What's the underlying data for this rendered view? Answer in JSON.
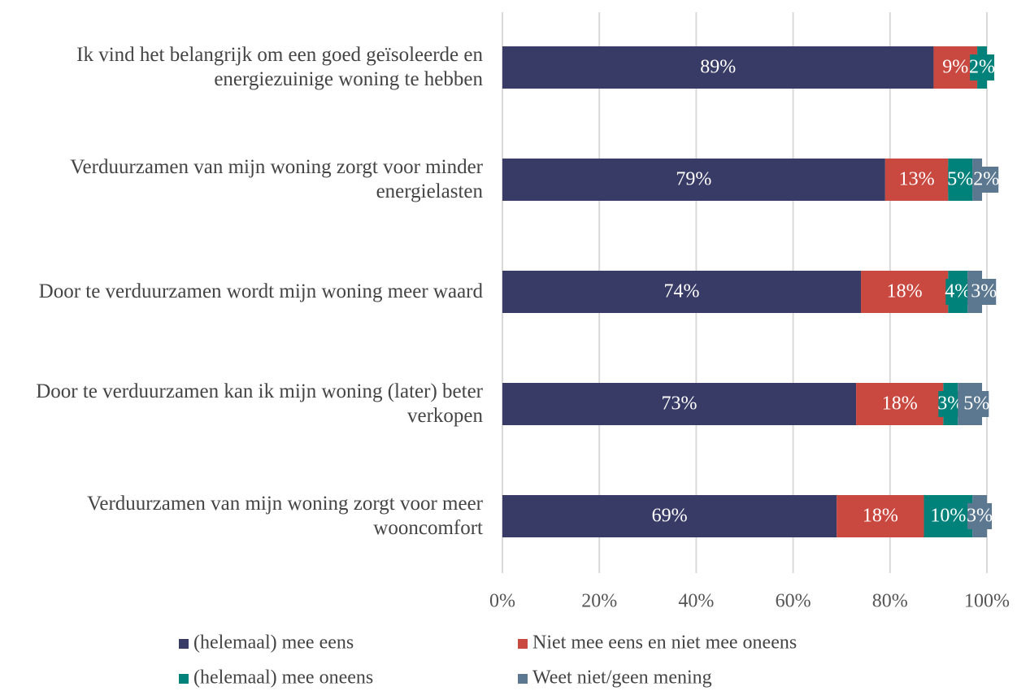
{
  "chart_data": {
    "type": "stacked-bar-horizontal",
    "categories": [
      "Ik vind het belangrijk om een goed geïsoleerde en energiezuinige woning te hebben",
      "Verduurzamen van mijn woning zorgt voor minder energielasten",
      "Door te verduurzamen wordt mijn woning meer waard",
      "Door te verduurzamen kan ik mijn woning (later) beter verkopen",
      "Verduurzamen van mijn woning zorgt voor meer wooncomfort"
    ],
    "series": [
      {
        "name": "(helemaal) mee eens",
        "color": "#383b66",
        "values": [
          89,
          79,
          74,
          73,
          69
        ],
        "value_labels": [
          "89%",
          "79%",
          "74%",
          "73%",
          "69%"
        ]
      },
      {
        "name": "Niet mee eens en niet mee oneens",
        "color": "#c9483f",
        "values": [
          9,
          13,
          18,
          18,
          18
        ],
        "value_labels": [
          "9%",
          "13%",
          "18%",
          "18%",
          "18%"
        ]
      },
      {
        "name": "(helemaal) mee oneens",
        "color": "#00827a",
        "values": [
          2,
          5,
          4,
          3,
          10
        ],
        "value_labels": [
          "2%",
          "5%",
          "4%",
          "3%",
          "10%"
        ]
      },
      {
        "name": "Weet niet/geen mening",
        "color": "#5b7890",
        "values": [
          null,
          2,
          3,
          5,
          3
        ],
        "value_labels": [
          null,
          "2%",
          "3%",
          "5%",
          "3%"
        ]
      }
    ],
    "xlim": [
      0,
      100
    ],
    "xticks": [
      {
        "value": 0,
        "label": "0%"
      },
      {
        "value": 20,
        "label": "20%"
      },
      {
        "value": 40,
        "label": "40%"
      },
      {
        "value": 60,
        "label": "60%"
      },
      {
        "value": 80,
        "label": "80%"
      },
      {
        "value": 100,
        "label": "100%"
      }
    ],
    "grid": true,
    "legend": "bottom"
  }
}
